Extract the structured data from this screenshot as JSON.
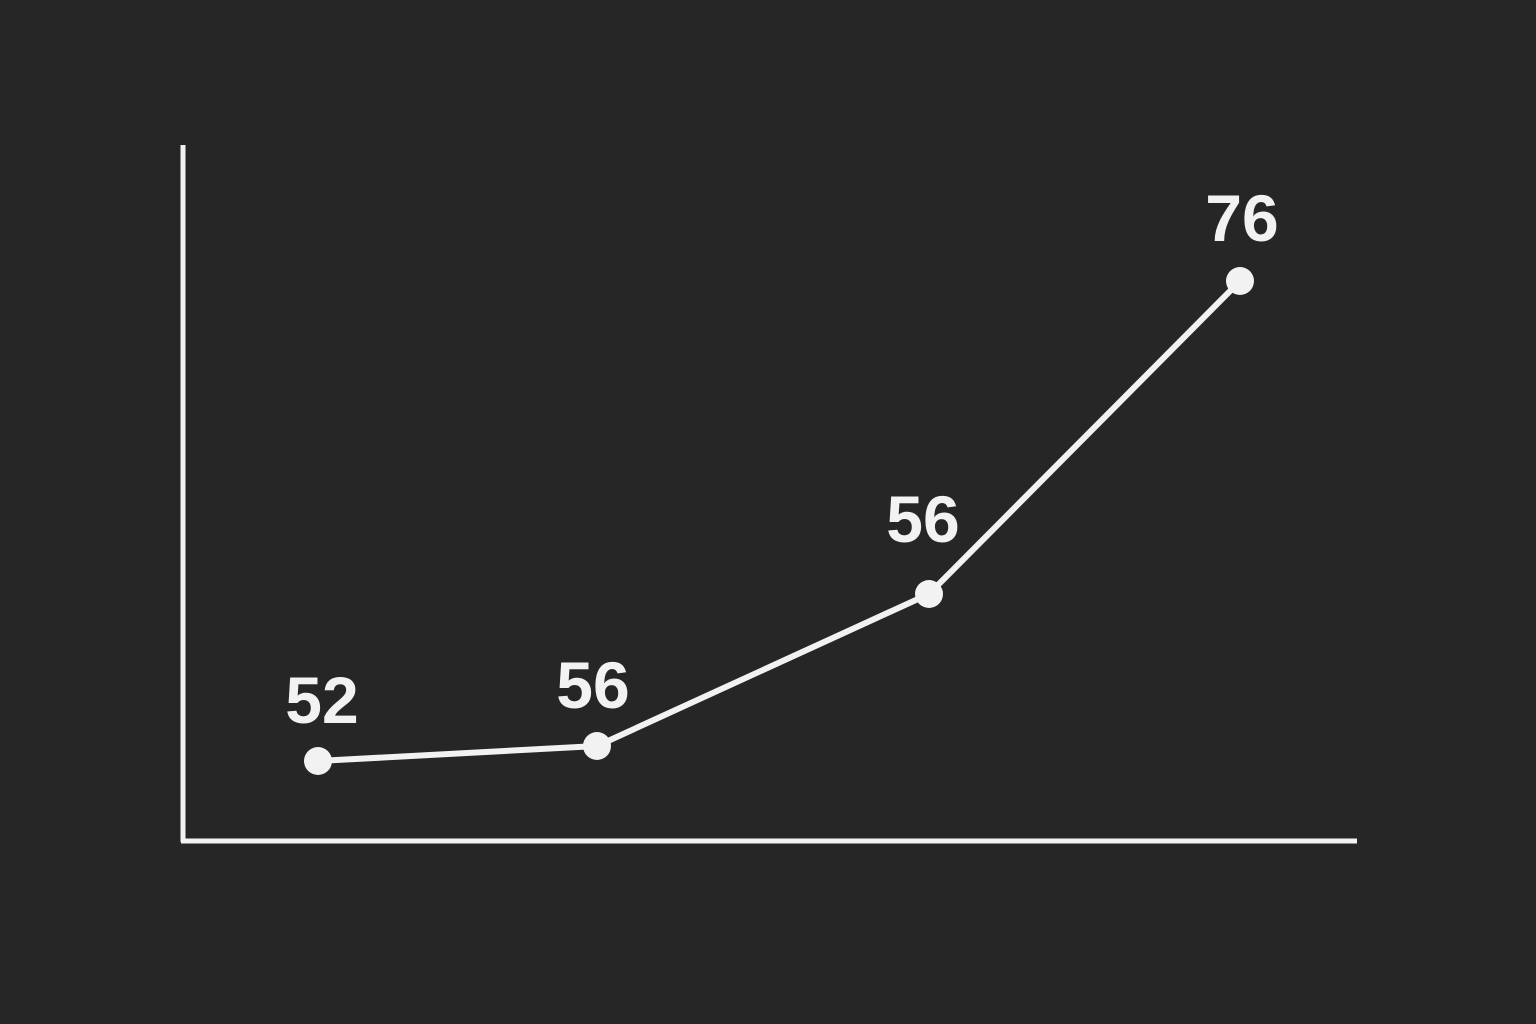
{
  "colors": {
    "background": "#262626",
    "foreground": "#f2f2f2"
  },
  "chart_data": {
    "type": "line",
    "title": "",
    "xlabel": "",
    "ylabel": "",
    "grid": false,
    "legend": "none",
    "x": [
      1,
      2,
      3,
      4
    ],
    "ylim": [
      45,
      80
    ],
    "series": [
      {
        "values": [
          52,
          56,
          56,
          76
        ],
        "labels": [
          "52",
          "56",
          "56",
          "76"
        ]
      }
    ]
  }
}
